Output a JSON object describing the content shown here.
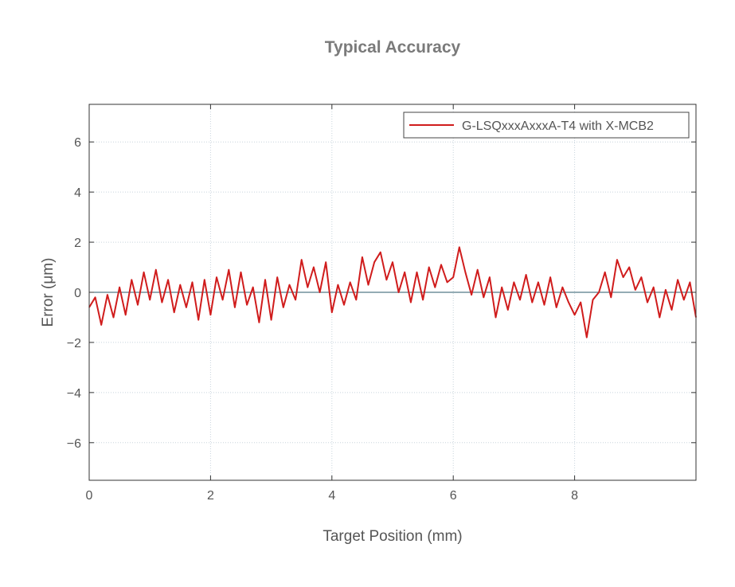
{
  "chart_data": {
    "type": "line",
    "title": "Typical Accuracy",
    "xlabel": "Target Position (mm)",
    "ylabel": "Error (μm)",
    "xlim": [
      0,
      10
    ],
    "ylim": [
      -7.5,
      7.5
    ],
    "xticks": [
      0,
      2,
      4,
      6,
      8
    ],
    "xtick_labels": [
      "0",
      "2",
      "4",
      "6",
      "8"
    ],
    "yticks": [
      -6,
      -4,
      -2,
      0,
      2,
      4,
      6
    ],
    "ytick_labels": [
      "−6",
      "−4",
      "−2",
      "0",
      "2",
      "4",
      "6"
    ],
    "grid": true,
    "legend_position": "top-right",
    "colors": {
      "line": "#d01c1c",
      "title": "#7a7a7a",
      "text": "#555555",
      "zero": "#2a5a6a"
    },
    "series": [
      {
        "name": "G-LSQxxxAxxxA-T4 with X-MCB2",
        "x": [
          0,
          0.1,
          0.2,
          0.3,
          0.4,
          0.5,
          0.6,
          0.7,
          0.8,
          0.9,
          1.0,
          1.1,
          1.2,
          1.3,
          1.4,
          1.5,
          1.6,
          1.7,
          1.8,
          1.9,
          2.0,
          2.1,
          2.2,
          2.3,
          2.4,
          2.5,
          2.6,
          2.7,
          2.8,
          2.9,
          3.0,
          3.1,
          3.2,
          3.3,
          3.4,
          3.5,
          3.6,
          3.7,
          3.8,
          3.9,
          4.0,
          4.1,
          4.2,
          4.3,
          4.4,
          4.5,
          4.6,
          4.7,
          4.8,
          4.9,
          5.0,
          5.1,
          5.2,
          5.3,
          5.4,
          5.5,
          5.6,
          5.7,
          5.8,
          5.9,
          6.0,
          6.1,
          6.2,
          6.3,
          6.4,
          6.5,
          6.6,
          6.7,
          6.8,
          6.9,
          7.0,
          7.1,
          7.2,
          7.3,
          7.4,
          7.5,
          7.6,
          7.7,
          7.8,
          7.9,
          8.0,
          8.1,
          8.2,
          8.3,
          8.4,
          8.5,
          8.6,
          8.7,
          8.8,
          8.9,
          9.0,
          9.1,
          9.2,
          9.3,
          9.4,
          9.5,
          9.6,
          9.7,
          9.8,
          9.9,
          10.0
        ],
        "y": [
          -0.6,
          -0.2,
          -1.3,
          -0.1,
          -1.0,
          0.2,
          -0.9,
          0.5,
          -0.5,
          0.8,
          -0.3,
          0.9,
          -0.4,
          0.5,
          -0.8,
          0.3,
          -0.6,
          0.4,
          -1.1,
          0.5,
          -0.9,
          0.6,
          -0.3,
          0.9,
          -0.6,
          0.8,
          -0.5,
          0.2,
          -1.2,
          0.5,
          -1.1,
          0.6,
          -0.6,
          0.3,
          -0.3,
          1.3,
          0.2,
          1.0,
          0.0,
          1.2,
          -0.8,
          0.3,
          -0.5,
          0.4,
          -0.3,
          1.4,
          0.3,
          1.2,
          1.6,
          0.5,
          1.2,
          0.0,
          0.8,
          -0.4,
          0.8,
          -0.3,
          1.0,
          0.2,
          1.1,
          0.4,
          0.6,
          1.8,
          0.8,
          -0.1,
          0.9,
          -0.2,
          0.6,
          -1.0,
          0.2,
          -0.7,
          0.4,
          -0.3,
          0.7,
          -0.4,
          0.4,
          -0.5,
          0.6,
          -0.6,
          0.2,
          -0.4,
          -0.9,
          -0.4,
          -1.8,
          -0.3,
          0.0,
          0.8,
          -0.2,
          1.3,
          0.6,
          1.0,
          0.1,
          0.6,
          -0.4,
          0.2,
          -1.0,
          0.1,
          -0.7,
          0.5,
          -0.3,
          0.4,
          -1.0
        ]
      }
    ]
  }
}
